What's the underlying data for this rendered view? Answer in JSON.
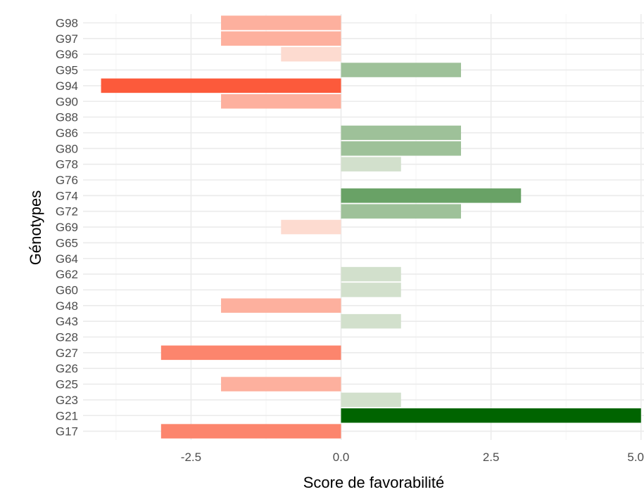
{
  "chart_data": {
    "type": "bar",
    "orientation": "horizontal",
    "title": "",
    "xlabel": "Score de favorabilité",
    "ylabel": "Génotypes",
    "xlim": [
      -4.3,
      5.05
    ],
    "x_ticks": [
      "-2.5",
      "0.0",
      "2.5",
      "5.0"
    ],
    "x_tick_values": [
      -2.5,
      0,
      2.5,
      5
    ],
    "grid": true,
    "legend": "none",
    "colors": {
      "neg_min": "#fddbd0",
      "neg_max": "#fc5a3b",
      "zero": "#ffffff",
      "pos_min": "#d2e0cc",
      "pos_max": "#006400",
      "grid_major": "#ebebeb",
      "grid_minor": "#f5f5f5"
    },
    "categories": [
      "G98",
      "G97",
      "G96",
      "G95",
      "G94",
      "G90",
      "G88",
      "G86",
      "G80",
      "G78",
      "G76",
      "G74",
      "G72",
      "G69",
      "G65",
      "G64",
      "G62",
      "G60",
      "G48",
      "G43",
      "G28",
      "G27",
      "G26",
      "G25",
      "G23",
      "G21",
      "G17"
    ],
    "values": [
      -2,
      -2,
      -1,
      2,
      -4,
      -2,
      0,
      2,
      2,
      1,
      0,
      3,
      2,
      -1,
      0,
      0,
      1,
      1,
      -2,
      1,
      0,
      -3,
      0,
      -2,
      1,
      5,
      -3
    ]
  }
}
